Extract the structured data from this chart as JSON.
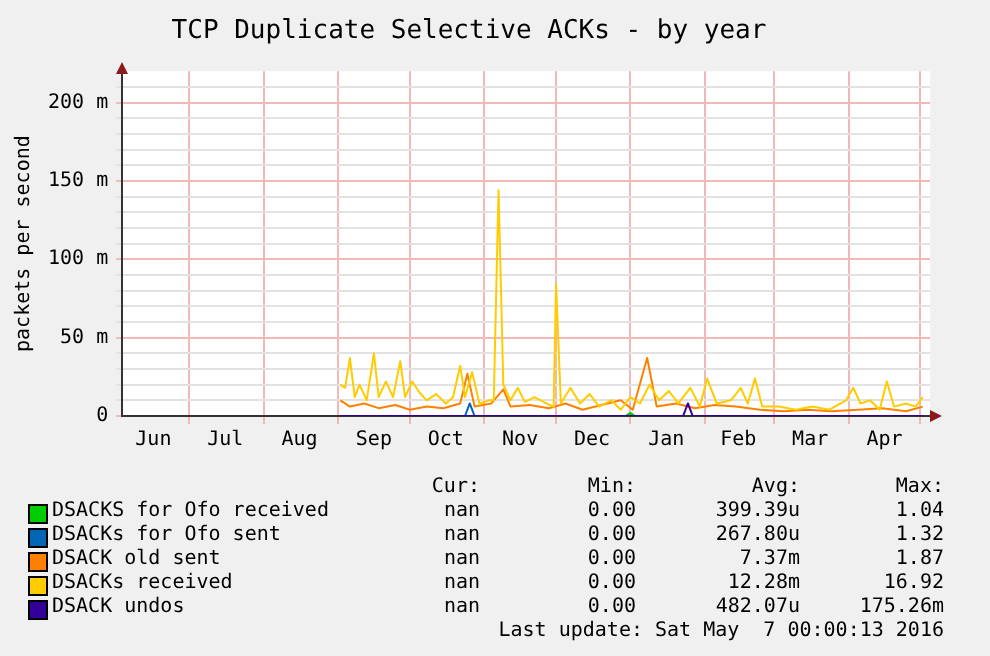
{
  "chart_data": {
    "type": "line",
    "title": "TCP Duplicate Selective ACKs - by year",
    "ylabel": "packets per second",
    "xlim": [
      "2015-06-03",
      "2016-05-05"
    ],
    "xticks": [
      {
        "value": "2015-06-16",
        "label": "Jun"
      },
      {
        "value": "2015-07-01",
        "label": null
      },
      {
        "value": "2015-07-16",
        "label": "Jul"
      },
      {
        "value": "2015-08-01",
        "label": null
      },
      {
        "value": "2015-08-16",
        "label": "Aug"
      },
      {
        "value": "2015-09-01",
        "label": null
      },
      {
        "value": "2015-09-16",
        "label": "Sep"
      },
      {
        "value": "2015-10-01",
        "label": null
      },
      {
        "value": "2015-10-16",
        "label": "Oct"
      },
      {
        "value": "2015-11-01",
        "label": null
      },
      {
        "value": "2015-11-16",
        "label": "Nov"
      },
      {
        "value": "2015-12-01",
        "label": null
      },
      {
        "value": "2015-12-16",
        "label": "Dec"
      },
      {
        "value": "2016-01-01",
        "label": null
      },
      {
        "value": "2016-01-16",
        "label": "Jan"
      },
      {
        "value": "2016-02-01",
        "label": null
      },
      {
        "value": "2016-02-15",
        "label": "Feb"
      },
      {
        "value": "2016-03-01",
        "label": null
      },
      {
        "value": "2016-03-16",
        "label": "Mar"
      },
      {
        "value": "2016-04-01",
        "label": null
      },
      {
        "value": "2016-04-16",
        "label": "Apr"
      },
      {
        "value": "2016-05-01",
        "label": null
      }
    ],
    "ylim": [
      0,
      220
    ],
    "yticks": [
      0,
      {
        "value": 10,
        "label": null
      },
      {
        "value": 20,
        "label": null
      },
      {
        "value": 30,
        "label": null
      },
      {
        "value": 40,
        "label": null
      },
      {
        "value": 50,
        "label": "50 m"
      },
      {
        "value": 60,
        "label": null
      },
      {
        "value": 70,
        "label": null
      },
      {
        "value": 80,
        "label": null
      },
      {
        "value": 90,
        "label": null
      },
      {
        "value": 100,
        "label": "100 m"
      },
      {
        "value": 110,
        "label": null
      },
      {
        "value": 120,
        "label": null
      },
      {
        "value": 130,
        "label": null
      },
      {
        "value": 140,
        "label": null
      },
      {
        "value": 150,
        "label": "150 m"
      },
      {
        "value": 160,
        "label": null
      },
      {
        "value": 170,
        "label": null
      },
      {
        "value": 180,
        "label": null
      },
      {
        "value": 190,
        "label": null
      },
      {
        "value": 200,
        "label": "200 m"
      },
      {
        "value": 210,
        "label": null
      }
    ],
    "grid": true,
    "legend": "bottom",
    "series": [
      {
        "name": "DSACKS for Ofo received",
        "color": "#00cc00",
        "x": [
          "2015-12-30",
          "2016-01-01",
          "2016-01-03"
        ],
        "values": [
          0,
          2,
          0
        ]
      },
      {
        "name": "DSACKs for Ofo sent",
        "color": "#0066b3",
        "x": [
          "2015-10-24",
          "2015-10-26",
          "2015-10-28"
        ],
        "values": [
          0,
          8,
          0
        ]
      },
      {
        "name": "DSACK old sent",
        "color": "#ff8000",
        "x": [
          "2015-09-02",
          "2015-09-06",
          "2015-09-12",
          "2015-09-18",
          "2015-09-25",
          "2015-10-01",
          "2015-10-08",
          "2015-10-15",
          "2015-10-22",
          "2015-10-25",
          "2015-10-28",
          "2015-11-04",
          "2015-11-09",
          "2015-11-12",
          "2015-11-20",
          "2015-11-28",
          "2015-12-05",
          "2015-12-12",
          "2015-12-20",
          "2015-12-28",
          "2016-01-02",
          "2016-01-08",
          "2016-01-12",
          "2016-01-20",
          "2016-01-28",
          "2016-02-05",
          "2016-02-14",
          "2016-02-24",
          "2016-03-05",
          "2016-03-15",
          "2016-03-25",
          "2016-04-05",
          "2016-04-15",
          "2016-04-25",
          "2016-05-02"
        ],
        "values": [
          10,
          6,
          8,
          5,
          7,
          4,
          6,
          5,
          8,
          27,
          6,
          8,
          17,
          6,
          7,
          5,
          8,
          4,
          7,
          10,
          4,
          37,
          6,
          8,
          5,
          7,
          6,
          4,
          3,
          4,
          3,
          4,
          5,
          3,
          6
        ]
      },
      {
        "name": "DSACKs received",
        "color": "#ffcc00",
        "x": [
          "2015-09-02",
          "2015-09-04",
          "2015-09-06",
          "2015-09-08",
          "2015-09-10",
          "2015-09-13",
          "2015-09-16",
          "2015-09-18",
          "2015-09-21",
          "2015-09-24",
          "2015-09-27",
          "2015-09-29",
          "2015-10-02",
          "2015-10-05",
          "2015-10-08",
          "2015-10-12",
          "2015-10-16",
          "2015-10-19",
          "2015-10-22",
          "2015-10-24",
          "2015-10-27",
          "2015-10-30",
          "2015-11-03",
          "2015-11-05",
          "2015-11-07",
          "2015-11-09",
          "2015-11-12",
          "2015-11-15",
          "2015-11-18",
          "2015-11-22",
          "2015-11-27",
          "2015-11-30",
          "2015-12-01",
          "2015-12-03",
          "2015-12-07",
          "2015-12-11",
          "2015-12-15",
          "2015-12-19",
          "2015-12-24",
          "2015-12-28",
          "2016-01-01",
          "2016-01-05",
          "2016-01-09",
          "2016-01-13",
          "2016-01-17",
          "2016-01-21",
          "2016-01-26",
          "2016-01-30",
          "2016-02-02",
          "2016-02-06",
          "2016-02-12",
          "2016-02-16",
          "2016-02-19",
          "2016-02-22",
          "2016-02-25",
          "2016-03-03",
          "2016-03-10",
          "2016-03-17",
          "2016-03-24",
          "2016-03-31",
          "2016-04-03",
          "2016-04-06",
          "2016-04-10",
          "2016-04-14",
          "2016-04-17",
          "2016-04-20",
          "2016-04-25",
          "2016-04-29",
          "2016-05-02"
        ],
        "values": [
          20,
          18,
          37,
          12,
          20,
          10,
          40,
          12,
          22,
          12,
          35,
          12,
          22,
          15,
          10,
          14,
          8,
          12,
          32,
          12,
          28,
          8,
          10,
          10,
          144,
          20,
          10,
          18,
          9,
          12,
          8,
          6,
          84,
          8,
          18,
          8,
          14,
          6,
          10,
          4,
          12,
          8,
          20,
          10,
          16,
          8,
          18,
          6,
          24,
          8,
          10,
          18,
          8,
          24,
          6,
          6,
          4,
          6,
          4,
          10,
          18,
          8,
          10,
          4,
          22,
          6,
          8,
          6,
          12
        ]
      },
      {
        "name": "DSACK undos",
        "color": "#330099",
        "x": [
          "2015-09-02",
          "2016-01-23",
          "2016-01-25",
          "2016-01-27",
          "2016-05-02"
        ],
        "values": [
          0,
          0,
          8,
          0,
          0
        ]
      }
    ],
    "annotations": [
      "Cur:",
      "Min:",
      "Avg:",
      "Max:",
      "nan",
      "0.00",
      "399.39u",
      "1.04",
      "nan",
      "0.00",
      "267.80u",
      "1.32",
      "nan",
      "0.00",
      "7.37m",
      "1.87",
      "nan",
      "0.00",
      "12.28m",
      "16.92",
      "nan",
      "0.00",
      "482.07u",
      "175.26m",
      "Last update: Sat May  7 00:00:13 2016"
    ]
  }
}
